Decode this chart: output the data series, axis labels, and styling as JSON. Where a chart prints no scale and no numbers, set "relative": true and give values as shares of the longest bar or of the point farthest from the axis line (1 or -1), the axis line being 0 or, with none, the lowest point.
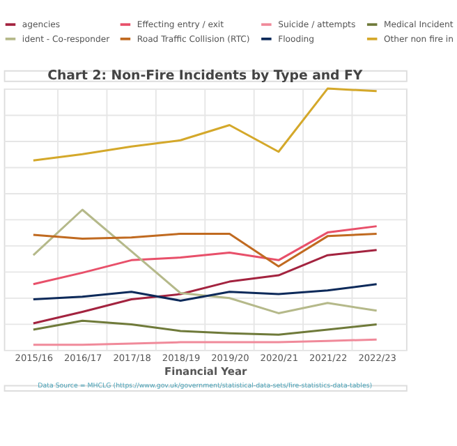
{
  "chart_data": {
    "type": "line",
    "title": "Chart 2: Non-Fire Incidents by Type and FY",
    "xlabel": "Financial Year",
    "categories": [
      "2015/16",
      "2016/17",
      "2017/18",
      "2018/19",
      "2019/20",
      "2020/21",
      "2021/22",
      "2022/23"
    ],
    "relative": true,
    "grid": true,
    "legend": "top",
    "marker": "none",
    "line_style": "solid",
    "series": [
      {
        "name": "agencies",
        "color": "#a3233f",
        "values": [
          0.101,
          0.145,
          0.193,
          0.213,
          0.261,
          0.285,
          0.362,
          0.382
        ]
      },
      {
        "name": "Effecting entry / exit",
        "color": "#e8506a",
        "values": [
          0.251,
          0.295,
          0.343,
          0.353,
          0.372,
          0.343,
          0.449,
          0.473
        ]
      },
      {
        "name": "Suicide / attempts",
        "color": "#f08a9a",
        "values": [
          0.019,
          0.019,
          0.024,
          0.029,
          0.029,
          0.029,
          0.034,
          0.039
        ]
      },
      {
        "name": "Medical Incident",
        "color": "#6f7a3a",
        "values": [
          0.077,
          0.111,
          0.097,
          0.072,
          0.063,
          0.058,
          0.077,
          0.097
        ]
      },
      {
        "name": "ident - Co-responder",
        "color": "#b5b98a",
        "values": [
          0.362,
          0.536,
          0.377,
          0.217,
          0.198,
          0.14,
          0.179,
          0.15
        ]
      },
      {
        "name": "Road Traffic Collision (RTC)",
        "color": "#c06a20",
        "values": [
          0.44,
          0.425,
          0.43,
          0.444,
          0.444,
          0.319,
          0.435,
          0.444
        ]
      },
      {
        "name": "Flooding",
        "color": "#0d2a5a",
        "values": [
          0.193,
          0.203,
          0.222,
          0.188,
          0.222,
          0.213,
          0.227,
          0.251
        ]
      },
      {
        "name": "Other non fire in",
        "color": "#d4a82a",
        "values": [
          0.725,
          0.749,
          0.778,
          0.802,
          0.86,
          0.758,
          1,
          0.99
        ]
      }
    ],
    "annotations": [
      "Data Source = MHCLG (https://www.gov.uk/government/statistical-data-sets/fire-statistics-data-tables)"
    ]
  }
}
